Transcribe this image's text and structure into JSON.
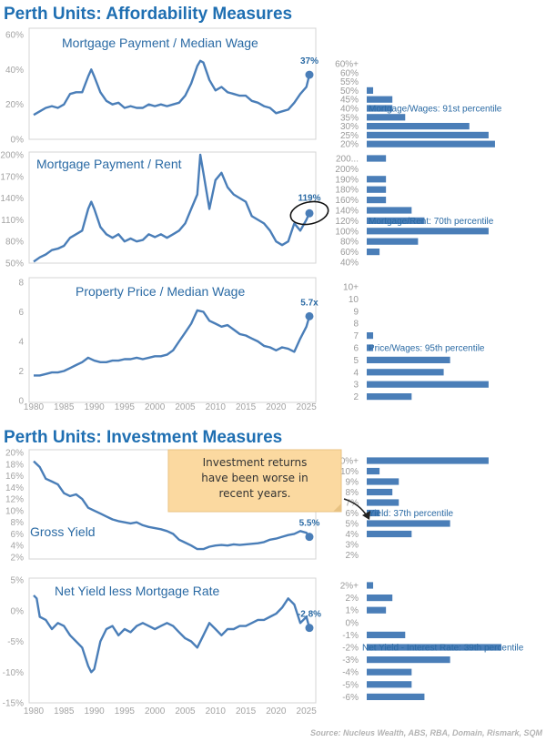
{
  "sections": {
    "affordability": "Perth Units: Affordability Measures",
    "investment": "Perth Units: Investment Measures"
  },
  "source": "Source: Nucleus Wealth, ABS, RBA, Domain, Rismark, SQM",
  "callout": [
    "Investment returns",
    "have been worse in",
    "recent years."
  ],
  "colors": {
    "line": "#4a7eb8",
    "bar": "#4a7eb8",
    "title": "#1f6fb2",
    "callout": "#fbd9a0"
  },
  "x_ticks": [
    "1980",
    "1985",
    "1990",
    "1995",
    "2000",
    "2005",
    "2010",
    "2015",
    "2020",
    "2025"
  ],
  "chart_data": [
    {
      "type": "line",
      "title": "Mortgage Payment / Median Wage",
      "yticks": [
        "0%",
        "20%",
        "40%",
        "60%"
      ],
      "ylim": [
        0,
        60
      ],
      "end_label": "37%",
      "x": [
        1980,
        1981,
        1982,
        1983,
        1984,
        1985,
        1986,
        1987,
        1988,
        1989,
        1989.5,
        1990,
        1991,
        1992,
        1993,
        1994,
        1995,
        1996,
        1997,
        1998,
        1999,
        2000,
        2001,
        2002,
        2003,
        2004,
        2005,
        2006,
        2007,
        2007.5,
        2008,
        2009,
        2010,
        2011,
        2012,
        2013,
        2014,
        2015,
        2016,
        2017,
        2018,
        2019,
        2020,
        2021,
        2022,
        2023,
        2024,
        2025,
        2025.5
      ],
      "y": [
        14,
        16,
        18,
        19,
        18,
        20,
        26,
        27,
        27,
        36,
        40,
        36,
        27,
        22,
        20,
        21,
        18,
        19,
        18,
        18,
        20,
        19,
        20,
        19,
        20,
        21,
        25,
        32,
        42,
        45,
        44,
        34,
        28,
        30,
        27,
        26,
        25,
        25,
        22,
        21,
        19,
        18,
        15,
        16,
        17,
        21,
        26,
        30,
        37
      ],
      "dist": {
        "labels": [
          "60%+",
          "60%",
          "55%",
          "50%",
          "45%",
          "40%",
          "35%",
          "30%",
          "25%",
          "20%"
        ],
        "values": [
          0,
          0,
          0,
          1,
          4,
          4,
          6,
          16,
          19,
          20
        ],
        "annotation": "Mortgage/Wages: 91st percentile",
        "annot_row": 5
      }
    },
    {
      "type": "line",
      "title": "Mortgage Payment / Rent",
      "yticks": [
        "50%",
        "80%",
        "110%",
        "140%",
        "170%",
        "200%"
      ],
      "ylim": [
        50,
        200
      ],
      "end_label": "119%",
      "x": [
        1980,
        1981,
        1982,
        1983,
        1984,
        1985,
        1986,
        1987,
        1988,
        1989,
        1989.5,
        1990,
        1991,
        1992,
        1993,
        1994,
        1995,
        1996,
        1997,
        1998,
        1999,
        2000,
        2001,
        2002,
        2003,
        2004,
        2005,
        2006,
        2007,
        2007.5,
        2008,
        2009,
        2010,
        2011,
        2012,
        2013,
        2014,
        2015,
        2016,
        2017,
        2018,
        2019,
        2020,
        2021,
        2022,
        2023,
        2024,
        2025,
        2025.5
      ],
      "y": [
        52,
        58,
        62,
        68,
        70,
        74,
        85,
        90,
        95,
        125,
        135,
        125,
        100,
        90,
        85,
        90,
        80,
        84,
        80,
        82,
        90,
        86,
        90,
        85,
        90,
        95,
        105,
        125,
        145,
        200,
        175,
        125,
        165,
        175,
        155,
        145,
        140,
        135,
        115,
        110,
        105,
        95,
        80,
        75,
        80,
        105,
        95,
        110,
        119
      ],
      "dist": {
        "labels": [
          "200...",
          "200%",
          "190%",
          "180%",
          "160%",
          "140%",
          "120%",
          "100%",
          "80%",
          "60%",
          "40%"
        ],
        "values": [
          3,
          0,
          3,
          3,
          3,
          7,
          9,
          19,
          8,
          2,
          0
        ],
        "annotation": "Mortgage/Rent: 70th percentile",
        "annot_row": 6
      }
    },
    {
      "type": "line",
      "title": "Property Price / Median Wage",
      "yticks": [
        "0",
        "2",
        "4",
        "6",
        "8"
      ],
      "ylim": [
        0,
        8
      ],
      "end_label": "5.7x",
      "x": [
        1980,
        1981,
        1982,
        1983,
        1984,
        1985,
        1986,
        1987,
        1988,
        1989,
        1990,
        1991,
        1992,
        1993,
        1994,
        1995,
        1996,
        1997,
        1998,
        1999,
        2000,
        2001,
        2002,
        2003,
        2004,
        2005,
        2006,
        2007,
        2008,
        2009,
        2010,
        2011,
        2012,
        2013,
        2014,
        2015,
        2016,
        2017,
        2018,
        2019,
        2020,
        2021,
        2022,
        2023,
        2024,
        2025,
        2025.5
      ],
      "y": [
        1.7,
        1.7,
        1.8,
        1.9,
        1.9,
        2.0,
        2.2,
        2.4,
        2.6,
        2.9,
        2.7,
        2.6,
        2.6,
        2.7,
        2.7,
        2.8,
        2.8,
        2.9,
        2.8,
        2.9,
        3.0,
        3.0,
        3.1,
        3.4,
        4.0,
        4.6,
        5.2,
        6.1,
        6.0,
        5.4,
        5.2,
        5.0,
        5.1,
        4.8,
        4.5,
        4.4,
        4.2,
        4.0,
        3.7,
        3.6,
        3.4,
        3.6,
        3.5,
        3.3,
        4.2,
        5.0,
        5.7
      ],
      "dist": {
        "labels": [
          "10+",
          "10",
          "9",
          "8",
          "7",
          "6",
          "5",
          "4",
          "3",
          "2"
        ],
        "values": [
          0,
          0,
          0,
          0,
          1,
          1,
          13,
          12,
          19,
          7
        ],
        "annotation": "Price/Wages: 95th percentile",
        "annot_row": 5
      }
    },
    {
      "type": "line",
      "title": "Gross Yield",
      "yticks": [
        "2%",
        "4%",
        "6%",
        "8%",
        "10%",
        "12%",
        "14%",
        "16%",
        "18%",
        "20%"
      ],
      "ylim": [
        2,
        20
      ],
      "end_label": "5.5%",
      "x": [
        1980,
        1981,
        1982,
        1983,
        1984,
        1985,
        1986,
        1987,
        1988,
        1989,
        1990,
        1991,
        1992,
        1993,
        1994,
        1995,
        1996,
        1997,
        1998,
        1999,
        2000,
        2001,
        2002,
        2003,
        2004,
        2005,
        2006,
        2007,
        2008,
        2009,
        2010,
        2011,
        2012,
        2013,
        2014,
        2015,
        2016,
        2017,
        2018,
        2019,
        2020,
        2021,
        2022,
        2023,
        2024,
        2025,
        2025.5
      ],
      "y": [
        18.5,
        17.5,
        15.5,
        15.0,
        14.5,
        13.0,
        12.5,
        12.8,
        12.0,
        10.5,
        10.0,
        9.5,
        9.0,
        8.5,
        8.2,
        8.0,
        7.8,
        8.0,
        7.5,
        7.2,
        7.0,
        6.8,
        6.5,
        6.0,
        5.0,
        4.5,
        4.0,
        3.4,
        3.4,
        3.8,
        4.0,
        4.1,
        4.0,
        4.2,
        4.1,
        4.2,
        4.3,
        4.4,
        4.6,
        5.0,
        5.2,
        5.5,
        5.8,
        6.0,
        6.5,
        6.2,
        5.5
      ],
      "dist": {
        "labels": [
          "10%+",
          "10%",
          "9%",
          "8%",
          "7%",
          "6%",
          "5%",
          "4%",
          "3%",
          "2%"
        ],
        "values": [
          19,
          2,
          5,
          4,
          5,
          2,
          13,
          7,
          0,
          0
        ],
        "annotation": "Yield: 37th percentile",
        "annot_row": 5
      }
    },
    {
      "type": "line",
      "title": "Net Yield less Mortgage Rate",
      "yticks": [
        "-15%",
        "-10%",
        "-5%",
        "0%",
        "5%"
      ],
      "ylim": [
        -15,
        5
      ],
      "end_label": "-2.8%",
      "x": [
        1980,
        1980.5,
        1981,
        1982,
        1983,
        1984,
        1985,
        1986,
        1987,
        1988,
        1989,
        1989.5,
        1990,
        1991,
        1992,
        1993,
        1994,
        1995,
        1996,
        1997,
        1998,
        1999,
        2000,
        2001,
        2002,
        2003,
        2004,
        2005,
        2006,
        2007,
        2008,
        2009,
        2010,
        2011,
        2012,
        2013,
        2014,
        2015,
        2016,
        2017,
        2018,
        2019,
        2020,
        2021,
        2022,
        2023,
        2024,
        2025,
        2025.5
      ],
      "y": [
        2.5,
        2.0,
        -1.0,
        -1.5,
        -3.0,
        -2.0,
        -2.5,
        -4.0,
        -5.0,
        -6.0,
        -9.0,
        -10.0,
        -9.5,
        -5.0,
        -3.0,
        -2.5,
        -4.0,
        -3.0,
        -3.5,
        -2.5,
        -2.0,
        -2.5,
        -3.0,
        -2.5,
        -2.0,
        -2.5,
        -3.5,
        -4.5,
        -5.0,
        -6.0,
        -4.0,
        -2.0,
        -3.0,
        -4.0,
        -3.0,
        -3.0,
        -2.5,
        -2.5,
        -2.0,
        -1.5,
        -1.5,
        -1.0,
        -0.5,
        0.5,
        2.0,
        1.0,
        -2.0,
        -1.0,
        -2.8
      ],
      "dist": {
        "labels": [
          "2%+",
          "2%",
          "1%",
          "0%",
          "-1%",
          "-2%",
          "-3%",
          "-4%",
          "-5%",
          "-6%"
        ],
        "values": [
          1,
          4,
          3,
          0,
          6,
          21,
          13,
          7,
          7,
          9
        ],
        "annotation": "Net Yield - Interest Rate: 39th percentile",
        "annot_row": 5
      }
    }
  ]
}
